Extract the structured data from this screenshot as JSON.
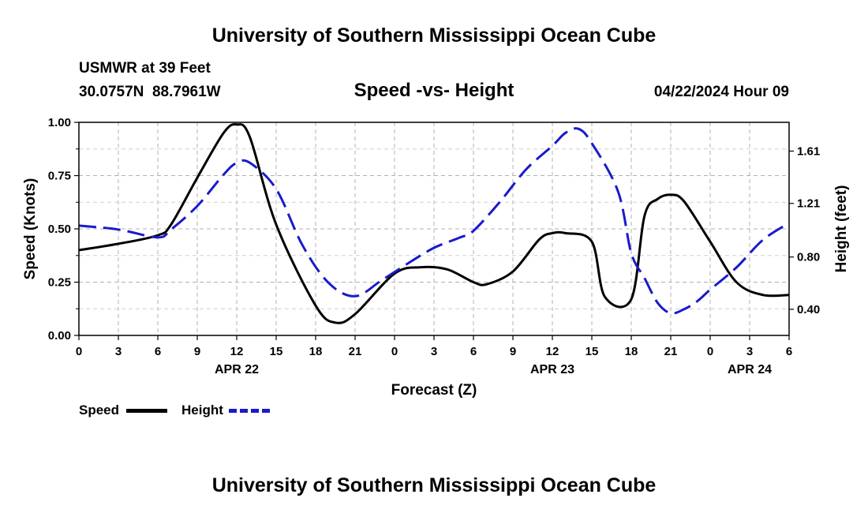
{
  "header": {
    "title": "University of Southern Mississippi Ocean Cube",
    "station": "USMWR at 39 Feet",
    "coords": "30.0757N  88.7961W",
    "subtitle": "Speed -vs- Height",
    "datetime": "04/22/2024 Hour 09"
  },
  "footer": {
    "title": "University of Southern Mississippi Ocean Cube"
  },
  "legend": {
    "speed_label": "Speed",
    "height_label": "Height",
    "speed_color": "#000000",
    "height_color": "#1a1acc"
  },
  "chart_data": {
    "type": "line",
    "title": "Speed -vs- Height",
    "xlabel": "Forecast (Z)",
    "ylabel": "Speed (Knots)",
    "y2label": "Height (feet)",
    "x_range_hours": [
      0,
      54
    ],
    "x_ticks": [
      {
        "h": 0,
        "label": "0"
      },
      {
        "h": 3,
        "label": "3"
      },
      {
        "h": 6,
        "label": "6"
      },
      {
        "h": 9,
        "label": "9"
      },
      {
        "h": 12,
        "label": "12"
      },
      {
        "h": 15,
        "label": "15"
      },
      {
        "h": 18,
        "label": "18"
      },
      {
        "h": 21,
        "label": "21"
      },
      {
        "h": 24,
        "label": "0"
      },
      {
        "h": 27,
        "label": "3"
      },
      {
        "h": 30,
        "label": "6"
      },
      {
        "h": 33,
        "label": "9"
      },
      {
        "h": 36,
        "label": "12"
      },
      {
        "h": 39,
        "label": "15"
      },
      {
        "h": 42,
        "label": "18"
      },
      {
        "h": 45,
        "label": "21"
      },
      {
        "h": 48,
        "label": "0"
      },
      {
        "h": 51,
        "label": "3"
      },
      {
        "h": 54,
        "label": "6"
      }
    ],
    "date_labels": [
      {
        "h": 12,
        "label": "APR 22"
      },
      {
        "h": 36,
        "label": "APR 23"
      },
      {
        "h": 51,
        "label": "APR 24"
      }
    ],
    "y_left": {
      "range": [
        0,
        1.0
      ],
      "ticks": [
        0.0,
        0.25,
        0.5,
        0.75,
        1.0
      ],
      "tick_labels": [
        "0.00",
        "0.25",
        "0.50",
        "0.75",
        "1.00"
      ]
    },
    "y_right": {
      "range": [
        0.2,
        1.83
      ],
      "ticks": [
        0.4,
        0.8,
        1.21,
        1.61
      ],
      "tick_labels": [
        "0.40",
        "0.80",
        "1.21",
        "1.61"
      ]
    },
    "grid": true,
    "series": [
      {
        "name": "Speed",
        "axis": "left",
        "style": "solid",
        "color": "#000000",
        "x": [
          0,
          3,
          6,
          7,
          9,
          11,
          12,
          13,
          15,
          18,
          19.5,
          21,
          24,
          26,
          28,
          30,
          31,
          33,
          35,
          36,
          37,
          39,
          40,
          42,
          43,
          44,
          45,
          46,
          48,
          50,
          52,
          54
        ],
        "values": [
          0.4,
          0.43,
          0.47,
          0.52,
          0.74,
          0.95,
          0.99,
          0.93,
          0.52,
          0.14,
          0.06,
          0.1,
          0.29,
          0.32,
          0.31,
          0.25,
          0.24,
          0.3,
          0.45,
          0.48,
          0.48,
          0.44,
          0.18,
          0.17,
          0.56,
          0.64,
          0.66,
          0.63,
          0.44,
          0.25,
          0.19,
          0.19
        ]
      },
      {
        "name": "Height",
        "axis": "right",
        "style": "dashed",
        "color": "#1a1acc",
        "x": [
          0,
          3,
          6,
          7,
          9,
          11,
          12,
          13,
          15,
          17,
          19,
          21,
          23,
          25,
          27,
          29,
          30,
          32,
          34,
          36,
          37,
          38,
          39,
          41,
          42,
          43,
          44,
          45,
          46,
          47,
          48,
          50,
          52,
          54
        ],
        "values": [
          1.04,
          1.01,
          0.95,
          1.01,
          1.19,
          1.43,
          1.52,
          1.52,
          1.32,
          0.89,
          0.6,
          0.5,
          0.62,
          0.75,
          0.87,
          0.95,
          1.0,
          1.22,
          1.47,
          1.65,
          1.75,
          1.78,
          1.67,
          1.3,
          0.83,
          0.64,
          0.45,
          0.37,
          0.4,
          0.46,
          0.55,
          0.72,
          0.93,
          1.06
        ]
      }
    ]
  }
}
